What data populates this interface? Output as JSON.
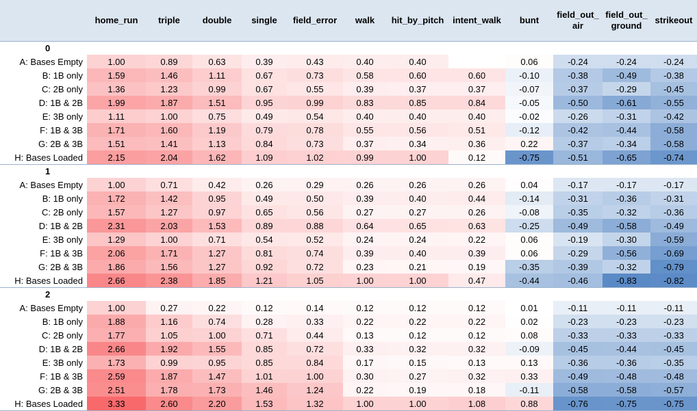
{
  "columns": [
    "home_run",
    "triple",
    "double",
    "single",
    "field_error",
    "walk",
    "hit_by_pitch",
    "intent_walk",
    "bunt",
    "field_out_\nair",
    "field_out_\nground",
    "strikeout"
  ],
  "row_labels": [
    "A: Bases Empty",
    "B: 1B only",
    "C: 2B only",
    "D: 1B & 2B",
    "E: 3B only",
    "F: 1B & 3B",
    "G: 2B & 3B",
    "H: Bases Loaded"
  ],
  "groups": [
    {
      "label": "0",
      "rows": [
        [
          "1.00",
          "0.89",
          "0.63",
          "0.39",
          "0.43",
          "0.40",
          "0.40",
          "",
          "0.06",
          "-0.24",
          "-0.24",
          "-0.24"
        ],
        [
          "1.59",
          "1.46",
          "1.11",
          "0.67",
          "0.73",
          "0.58",
          "0.60",
          "0.60",
          "-0.10",
          "-0.38",
          "-0.49",
          "-0.38"
        ],
        [
          "1.36",
          "1.23",
          "0.99",
          "0.67",
          "0.55",
          "0.39",
          "0.37",
          "0.37",
          "-0.07",
          "-0.37",
          "-0.29",
          "-0.45"
        ],
        [
          "1.99",
          "1.87",
          "1.51",
          "0.95",
          "0.99",
          "0.83",
          "0.85",
          "0.84",
          "-0.05",
          "-0.50",
          "-0.61",
          "-0.55"
        ],
        [
          "1.11",
          "1.00",
          "0.75",
          "0.49",
          "0.54",
          "0.40",
          "0.40",
          "0.40",
          "-0.02",
          "-0.26",
          "-0.31",
          "-0.42"
        ],
        [
          "1.71",
          "1.60",
          "1.19",
          "0.79",
          "0.78",
          "0.55",
          "0.56",
          "0.51",
          "-0.12",
          "-0.42",
          "-0.44",
          "-0.58"
        ],
        [
          "1.51",
          "1.41",
          "1.13",
          "0.84",
          "0.73",
          "0.37",
          "0.34",
          "0.36",
          "0.22",
          "-0.37",
          "-0.34",
          "-0.58"
        ],
        [
          "2.15",
          "2.04",
          "1.62",
          "1.09",
          "1.02",
          "0.99",
          "1.00",
          "0.12",
          "-0.75",
          "-0.51",
          "-0.65",
          "-0.74"
        ]
      ]
    },
    {
      "label": "1",
      "rows": [
        [
          "1.00",
          "0.71",
          "0.42",
          "0.26",
          "0.29",
          "0.26",
          "0.26",
          "0.26",
          "0.04",
          "-0.17",
          "-0.17",
          "-0.17"
        ],
        [
          "1.72",
          "1.42",
          "0.95",
          "0.49",
          "0.50",
          "0.39",
          "0.40",
          "0.44",
          "-0.14",
          "-0.31",
          "-0.36",
          "-0.31"
        ],
        [
          "1.57",
          "1.27",
          "0.97",
          "0.65",
          "0.56",
          "0.27",
          "0.27",
          "0.26",
          "-0.08",
          "-0.35",
          "-0.32",
          "-0.36"
        ],
        [
          "2.31",
          "2.03",
          "1.53",
          "0.89",
          "0.88",
          "0.64",
          "0.65",
          "0.63",
          "-0.25",
          "-0.49",
          "-0.58",
          "-0.49"
        ],
        [
          "1.29",
          "1.00",
          "0.71",
          "0.54",
          "0.52",
          "0.24",
          "0.24",
          "0.22",
          "0.06",
          "-0.19",
          "-0.30",
          "-0.59"
        ],
        [
          "2.06",
          "1.71",
          "1.27",
          "0.81",
          "0.74",
          "0.39",
          "0.40",
          "0.39",
          "0.06",
          "-0.29",
          "-0.56",
          "-0.69"
        ],
        [
          "1.86",
          "1.56",
          "1.27",
          "0.92",
          "0.72",
          "0.23",
          "0.21",
          "0.19",
          "-0.35",
          "-0.39",
          "-0.32",
          "-0.79"
        ],
        [
          "2.66",
          "2.38",
          "1.85",
          "1.21",
          "1.05",
          "1.00",
          "1.00",
          "0.47",
          "-0.44",
          "-0.46",
          "-0.83",
          "-0.82"
        ]
      ]
    },
    {
      "label": "2",
      "rows": [
        [
          "1.00",
          "0.27",
          "0.22",
          "0.12",
          "0.14",
          "0.12",
          "0.12",
          "0.12",
          "0.01",
          "-0.11",
          "-0.11",
          "-0.11"
        ],
        [
          "1.88",
          "1.16",
          "0.74",
          "0.28",
          "0.33",
          "0.22",
          "0.22",
          "0.22",
          "0.02",
          "-0.23",
          "-0.23",
          "-0.23"
        ],
        [
          "1.77",
          "1.05",
          "1.00",
          "0.71",
          "0.44",
          "0.13",
          "0.12",
          "0.12",
          "0.08",
          "-0.33",
          "-0.33",
          "-0.33"
        ],
        [
          "2.66",
          "1.92",
          "1.55",
          "0.85",
          "0.72",
          "0.33",
          "0.32",
          "0.32",
          "-0.09",
          "-0.45",
          "-0.44",
          "-0.45"
        ],
        [
          "1.73",
          "0.99",
          "0.95",
          "0.85",
          "0.84",
          "0.17",
          "0.15",
          "0.13",
          "0.13",
          "-0.36",
          "-0.36",
          "-0.35"
        ],
        [
          "2.59",
          "1.87",
          "1.47",
          "1.01",
          "1.00",
          "0.30",
          "0.27",
          "0.32",
          "0.33",
          "-0.49",
          "-0.48",
          "-0.48"
        ],
        [
          "2.51",
          "1.78",
          "1.73",
          "1.46",
          "1.24",
          "0.22",
          "0.19",
          "0.18",
          "-0.11",
          "-0.58",
          "-0.58",
          "-0.57"
        ],
        [
          "3.33",
          "2.60",
          "2.20",
          "1.53",
          "1.32",
          "1.00",
          "1.00",
          "1.08",
          "0.88",
          "-0.76",
          "-0.75",
          "-0.75"
        ]
      ]
    }
  ],
  "colors": {
    "header_bg": "#dce6f1",
    "positive_max": "#f8696b",
    "negative_max": "#5a8ac6",
    "neutral": "#ffffff"
  }
}
